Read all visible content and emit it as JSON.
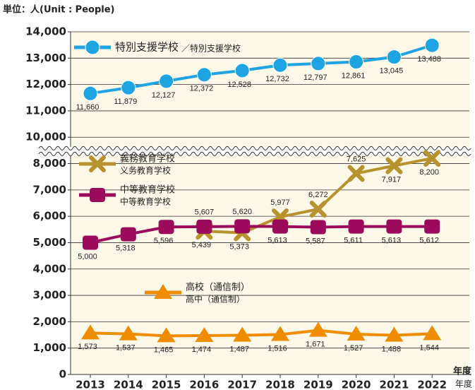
{
  "chart_data": {
    "type": "line",
    "unit_label": "単位：人(Unit : People)",
    "x_label": "年度",
    "x_label_sub": "年度",
    "categories": [
      "2013",
      "2014",
      "2015",
      "2016",
      "2017",
      "2018",
      "2019",
      "2020",
      "2021",
      "2022"
    ],
    "ylim": [
      0,
      14000
    ],
    "y_break": [
      9000,
      10000
    ],
    "yticks": [
      0,
      {
        "value": 1000,
        "label": "1,000"
      },
      {
        "value": 2000,
        "label": "2,000"
      },
      {
        "value": 3000,
        "label": "3,000"
      },
      {
        "value": 4000,
        "label": "4,000"
      },
      {
        "value": 5000,
        "label": "5,000"
      },
      {
        "value": 6000,
        "label": "6,000"
      },
      {
        "value": 7000,
        "label": "7,000"
      },
      {
        "value": 8000,
        "label": "8,000"
      },
      {
        "value": 10000,
        "label": "10,000"
      },
      {
        "value": 11000,
        "label": "11,000"
      },
      {
        "value": 12000,
        "label": "12,000"
      },
      {
        "value": 13000,
        "label": "13,000"
      },
      {
        "value": 14000,
        "label": "14,000"
      }
    ],
    "grid": true,
    "series": [
      {
        "name": "特別支援学校",
        "subname": "／特別支援学校",
        "color": "#1ea4e2",
        "marker": "circle",
        "values": [
          11660,
          11879,
          12127,
          12372,
          12528,
          12732,
          12797,
          12861,
          13045,
          13488
        ],
        "value_labels": [
          "11,660",
          "11,879",
          "12,127",
          "12,372",
          "12,528",
          "12,732",
          "12,797",
          "12,861",
          "13,045",
          "13,488"
        ]
      },
      {
        "name": "義務教育学校",
        "subname": "义务教育学校",
        "color": "#b8922c",
        "marker": "x",
        "values": [
          null,
          null,
          null,
          5439,
          5373,
          5977,
          6272,
          7625,
          7917,
          8200
        ],
        "value_labels": [
          null,
          null,
          null,
          "5,439",
          "5,373",
          "5,977",
          "6,272",
          "7,625",
          "7,917",
          "8,200"
        ]
      },
      {
        "name": "中等教育学校",
        "subname": "中等教育学校",
        "color": "#9c0a5c",
        "marker": "square",
        "values": [
          5000,
          5318,
          5596,
          5607,
          5620,
          5613,
          5587,
          5611,
          5613,
          5612
        ],
        "value_labels": [
          "5,000",
          "5,318",
          "5,596",
          "5,607",
          "5,620",
          "5,613",
          "5,587",
          "5,611",
          "5,613",
          "5,612"
        ]
      },
      {
        "name": "高校（通信制）",
        "subname": "高中（通信制）",
        "color": "#f08c00",
        "marker": "triangle",
        "values": [
          1573,
          1537,
          1465,
          1474,
          1487,
          1516,
          1671,
          1527,
          1488,
          1544
        ],
        "value_labels": [
          "1,573",
          "1,537",
          "1,465",
          "1,474",
          "1,487",
          "1,516",
          "1,671",
          "1,527",
          "1,488",
          "1,544"
        ]
      }
    ]
  }
}
